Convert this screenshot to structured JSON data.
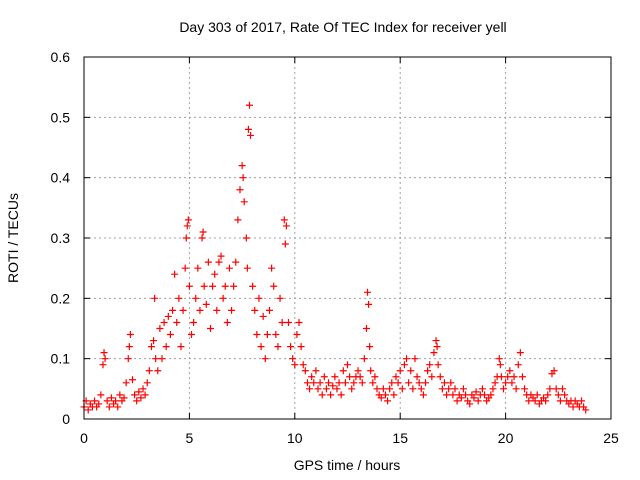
{
  "chart_data": {
    "type": "scatter",
    "title": "Day 303 of 2017, Rate Of TEC Index for receiver yell",
    "xlabel": "GPS time / hours",
    "ylabel": "ROTI / TECUs",
    "xlim": [
      0,
      25
    ],
    "ylim": [
      0,
      0.6
    ],
    "x_ticks": [
      "0",
      "5",
      "10",
      "15",
      "20",
      "25"
    ],
    "y_ticks": [
      "0",
      "0.1",
      "0.2",
      "0.3",
      "0.4",
      "0.5",
      "0.6"
    ],
    "grid": true,
    "marker": "+",
    "color": "#ff0000",
    "series": [
      {
        "points": [
          [
            0.0,
            0.02
          ],
          [
            0.1,
            0.03
          ],
          [
            0.2,
            0.015
          ],
          [
            0.3,
            0.025
          ],
          [
            0.4,
            0.02
          ],
          [
            0.5,
            0.03
          ],
          [
            0.6,
            0.02
          ],
          [
            0.7,
            0.025
          ],
          [
            0.8,
            0.04
          ],
          [
            0.9,
            0.09
          ],
          [
            0.95,
            0.11
          ],
          [
            1.0,
            0.1
          ],
          [
            1.1,
            0.03
          ],
          [
            1.2,
            0.02
          ],
          [
            1.3,
            0.035
          ],
          [
            1.4,
            0.025
          ],
          [
            1.5,
            0.03
          ],
          [
            1.6,
            0.02
          ],
          [
            1.7,
            0.04
          ],
          [
            1.8,
            0.03
          ],
          [
            1.9,
            0.035
          ],
          [
            2.0,
            0.06
          ],
          [
            2.1,
            0.1
          ],
          [
            2.15,
            0.12
          ],
          [
            2.2,
            0.14
          ],
          [
            2.3,
            0.065
          ],
          [
            2.4,
            0.04
          ],
          [
            2.5,
            0.03
          ],
          [
            2.6,
            0.045
          ],
          [
            2.7,
            0.035
          ],
          [
            2.8,
            0.05
          ],
          [
            2.9,
            0.04
          ],
          [
            3.0,
            0.06
          ],
          [
            3.1,
            0.08
          ],
          [
            3.2,
            0.12
          ],
          [
            3.3,
            0.13
          ],
          [
            3.35,
            0.2
          ],
          [
            3.4,
            0.1
          ],
          [
            3.5,
            0.08
          ],
          [
            3.6,
            0.15
          ],
          [
            3.7,
            0.1
          ],
          [
            3.8,
            0.16
          ],
          [
            3.9,
            0.12
          ],
          [
            4.0,
            0.17
          ],
          [
            4.1,
            0.14
          ],
          [
            4.2,
            0.18
          ],
          [
            4.3,
            0.24
          ],
          [
            4.4,
            0.16
          ],
          [
            4.5,
            0.2
          ],
          [
            4.6,
            0.12
          ],
          [
            4.7,
            0.18
          ],
          [
            4.8,
            0.25
          ],
          [
            4.85,
            0.3
          ],
          [
            4.9,
            0.32
          ],
          [
            4.95,
            0.33
          ],
          [
            5.0,
            0.22
          ],
          [
            5.1,
            0.14
          ],
          [
            5.2,
            0.16
          ],
          [
            5.3,
            0.2
          ],
          [
            5.4,
            0.25
          ],
          [
            5.5,
            0.18
          ],
          [
            5.6,
            0.3
          ],
          [
            5.65,
            0.31
          ],
          [
            5.7,
            0.22
          ],
          [
            5.8,
            0.19
          ],
          [
            5.9,
            0.26
          ],
          [
            6.0,
            0.15
          ],
          [
            6.1,
            0.22
          ],
          [
            6.2,
            0.24
          ],
          [
            6.3,
            0.18
          ],
          [
            6.4,
            0.26
          ],
          [
            6.5,
            0.27
          ],
          [
            6.6,
            0.2
          ],
          [
            6.7,
            0.22
          ],
          [
            6.8,
            0.16
          ],
          [
            6.9,
            0.25
          ],
          [
            7.0,
            0.18
          ],
          [
            7.1,
            0.22
          ],
          [
            7.2,
            0.26
          ],
          [
            7.3,
            0.33
          ],
          [
            7.4,
            0.38
          ],
          [
            7.5,
            0.42
          ],
          [
            7.55,
            0.4
          ],
          [
            7.6,
            0.36
          ],
          [
            7.7,
            0.3
          ],
          [
            7.75,
            0.25
          ],
          [
            7.8,
            0.48
          ],
          [
            7.85,
            0.52
          ],
          [
            7.9,
            0.47
          ],
          [
            8.0,
            0.22
          ],
          [
            8.1,
            0.18
          ],
          [
            8.2,
            0.14
          ],
          [
            8.3,
            0.2
          ],
          [
            8.4,
            0.12
          ],
          [
            8.5,
            0.17
          ],
          [
            8.6,
            0.1
          ],
          [
            8.7,
            0.14
          ],
          [
            8.8,
            0.18
          ],
          [
            8.9,
            0.25
          ],
          [
            9.0,
            0.22
          ],
          [
            9.1,
            0.14
          ],
          [
            9.2,
            0.12
          ],
          [
            9.3,
            0.2
          ],
          [
            9.4,
            0.16
          ],
          [
            9.5,
            0.33
          ],
          [
            9.55,
            0.29
          ],
          [
            9.6,
            0.32
          ],
          [
            9.7,
            0.16
          ],
          [
            9.8,
            0.12
          ],
          [
            9.9,
            0.1
          ],
          [
            10.0,
            0.09
          ],
          [
            10.1,
            0.14
          ],
          [
            10.2,
            0.16
          ],
          [
            10.3,
            0.12
          ],
          [
            10.4,
            0.09
          ],
          [
            10.5,
            0.08
          ],
          [
            10.6,
            0.06
          ],
          [
            10.7,
            0.05
          ],
          [
            10.8,
            0.07
          ],
          [
            10.9,
            0.06
          ],
          [
            11.0,
            0.08
          ],
          [
            11.1,
            0.05
          ],
          [
            11.2,
            0.06
          ],
          [
            11.3,
            0.04
          ],
          [
            11.4,
            0.07
          ],
          [
            11.5,
            0.05
          ],
          [
            11.6,
            0.06
          ],
          [
            11.7,
            0.04
          ],
          [
            11.8,
            0.055
          ],
          [
            11.9,
            0.07
          ],
          [
            12.0,
            0.05
          ],
          [
            12.1,
            0.06
          ],
          [
            12.2,
            0.04
          ],
          [
            12.3,
            0.08
          ],
          [
            12.4,
            0.06
          ],
          [
            12.5,
            0.09
          ],
          [
            12.6,
            0.07
          ],
          [
            12.7,
            0.05
          ],
          [
            12.8,
            0.06
          ],
          [
            12.9,
            0.07
          ],
          [
            13.0,
            0.08
          ],
          [
            13.1,
            0.07
          ],
          [
            13.2,
            0.06
          ],
          [
            13.3,
            0.1
          ],
          [
            13.4,
            0.15
          ],
          [
            13.45,
            0.21
          ],
          [
            13.5,
            0.19
          ],
          [
            13.55,
            0.12
          ],
          [
            13.6,
            0.08
          ],
          [
            13.7,
            0.06
          ],
          [
            13.8,
            0.07
          ],
          [
            13.9,
            0.05
          ],
          [
            14.0,
            0.04
          ],
          [
            14.1,
            0.035
          ],
          [
            14.2,
            0.05
          ],
          [
            14.3,
            0.04
          ],
          [
            14.4,
            0.03
          ],
          [
            14.5,
            0.05
          ],
          [
            14.6,
            0.06
          ],
          [
            14.7,
            0.04
          ],
          [
            14.8,
            0.07
          ],
          [
            14.9,
            0.06
          ],
          [
            15.0,
            0.08
          ],
          [
            15.1,
            0.05
          ],
          [
            15.2,
            0.09
          ],
          [
            15.3,
            0.1
          ],
          [
            15.4,
            0.06
          ],
          [
            15.5,
            0.08
          ],
          [
            15.6,
            0.05
          ],
          [
            15.7,
            0.1
          ],
          [
            15.8,
            0.07
          ],
          [
            15.9,
            0.06
          ],
          [
            16.0,
            0.05
          ],
          [
            16.1,
            0.04
          ],
          [
            16.2,
            0.06
          ],
          [
            16.3,
            0.08
          ],
          [
            16.4,
            0.09
          ],
          [
            16.5,
            0.07
          ],
          [
            16.6,
            0.11
          ],
          [
            16.7,
            0.13
          ],
          [
            16.75,
            0.12
          ],
          [
            16.8,
            0.09
          ],
          [
            16.9,
            0.07
          ],
          [
            17.0,
            0.05
          ],
          [
            17.1,
            0.06
          ],
          [
            17.2,
            0.04
          ],
          [
            17.3,
            0.05
          ],
          [
            17.4,
            0.06
          ],
          [
            17.5,
            0.04
          ],
          [
            17.6,
            0.05
          ],
          [
            17.7,
            0.03
          ],
          [
            17.8,
            0.04
          ],
          [
            17.9,
            0.035
          ],
          [
            18.0,
            0.05
          ],
          [
            18.1,
            0.04
          ],
          [
            18.2,
            0.03
          ],
          [
            18.3,
            0.025
          ],
          [
            18.4,
            0.04
          ],
          [
            18.5,
            0.035
          ],
          [
            18.6,
            0.045
          ],
          [
            18.7,
            0.03
          ],
          [
            18.8,
            0.04
          ],
          [
            18.9,
            0.05
          ],
          [
            19.0,
            0.04
          ],
          [
            19.1,
            0.03
          ],
          [
            19.2,
            0.035
          ],
          [
            19.3,
            0.04
          ],
          [
            19.4,
            0.05
          ],
          [
            19.5,
            0.06
          ],
          [
            19.6,
            0.07
          ],
          [
            19.7,
            0.1
          ],
          [
            19.75,
            0.09
          ],
          [
            19.8,
            0.07
          ],
          [
            19.9,
            0.05
          ],
          [
            20.0,
            0.06
          ],
          [
            20.1,
            0.07
          ],
          [
            20.2,
            0.08
          ],
          [
            20.3,
            0.06
          ],
          [
            20.4,
            0.07
          ],
          [
            20.5,
            0.05
          ],
          [
            20.6,
            0.09
          ],
          [
            20.7,
            0.11
          ],
          [
            20.8,
            0.07
          ],
          [
            20.9,
            0.05
          ],
          [
            21.0,
            0.04
          ],
          [
            21.1,
            0.03
          ],
          [
            21.2,
            0.04
          ],
          [
            21.3,
            0.035
          ],
          [
            21.4,
            0.03
          ],
          [
            21.5,
            0.04
          ],
          [
            21.6,
            0.025
          ],
          [
            21.7,
            0.03
          ],
          [
            21.8,
            0.035
          ],
          [
            21.9,
            0.03
          ],
          [
            22.0,
            0.04
          ],
          [
            22.1,
            0.05
          ],
          [
            22.2,
            0.075
          ],
          [
            22.3,
            0.08
          ],
          [
            22.4,
            0.05
          ],
          [
            22.5,
            0.04
          ],
          [
            22.6,
            0.03
          ],
          [
            22.7,
            0.05
          ],
          [
            22.8,
            0.04
          ],
          [
            22.9,
            0.03
          ],
          [
            23.0,
            0.025
          ],
          [
            23.1,
            0.03
          ],
          [
            23.2,
            0.02
          ],
          [
            23.3,
            0.03
          ],
          [
            23.4,
            0.025
          ],
          [
            23.5,
            0.02
          ],
          [
            23.6,
            0.03
          ],
          [
            23.7,
            0.02
          ],
          [
            23.8,
            0.015
          ]
        ]
      }
    ]
  }
}
